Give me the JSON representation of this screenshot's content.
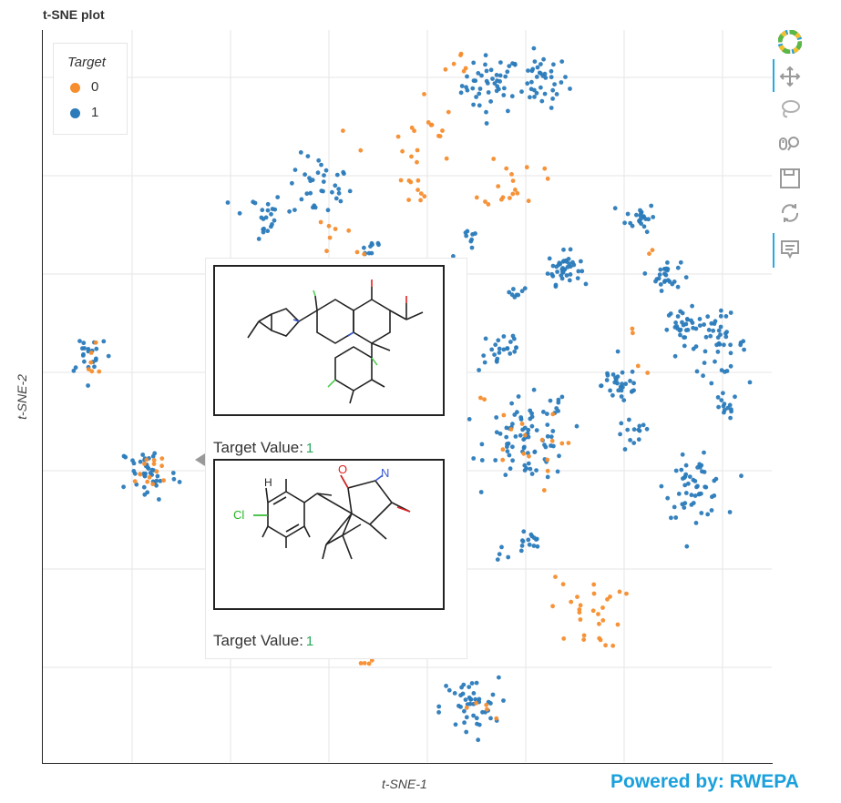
{
  "title": "t-SNE plot",
  "legend": {
    "title": "Target",
    "items": [
      {
        "label": "0",
        "color": "#f68d2e"
      },
      {
        "label": "1",
        "color": "#2b7bba"
      }
    ]
  },
  "xlabel": "t-SNE-1",
  "ylabel": "t-SNE-2",
  "powered_by": "Powered by: RWEPA",
  "toolbar": [
    "bokeh-logo-icon",
    "pan-icon",
    "lasso-icon",
    "wheel-zoom-icon",
    "save-icon",
    "reset-icon",
    "hover-icon"
  ],
  "tooltip": {
    "entries": [
      {
        "label": "Target Value:",
        "value": "1"
      },
      {
        "label": "Target Value:",
        "value": "1"
      }
    ],
    "mol2_atoms": {
      "h": "H",
      "cl": "Cl",
      "o": "O",
      "n": "N"
    }
  },
  "chart_data": {
    "type": "scatter",
    "title": "t-SNE plot",
    "xlabel": "t-SNE-1",
    "ylabel": "t-SNE-2",
    "xlim": [
      0,
      100
    ],
    "ylim": [
      0,
      100
    ],
    "grid": true,
    "legend_position": "top-left",
    "series": [
      {
        "name": "0",
        "color": "#f68d2e",
        "clusters": [
          {
            "x": 57.5,
            "y": 94.5,
            "spread": 1.2,
            "n": 6
          },
          {
            "x": 50.5,
            "y": 85.5,
            "spread": 3.2,
            "n": 18
          },
          {
            "x": 64.5,
            "y": 79.5,
            "spread": 2.0,
            "n": 18
          },
          {
            "x": 51.5,
            "y": 78.5,
            "spread": 0.9,
            "n": 9
          },
          {
            "x": 39.5,
            "y": 70.5,
            "spread": 2.5,
            "n": 12
          },
          {
            "x": 83.0,
            "y": 70.0,
            "spread": 0.5,
            "n": 2
          },
          {
            "x": 14.5,
            "y": 39.5,
            "spread": 1.8,
            "n": 14
          },
          {
            "x": 6.5,
            "y": 54.5,
            "spread": 1.2,
            "n": 6
          },
          {
            "x": 65.5,
            "y": 42.5,
            "spread": 2.8,
            "n": 16
          },
          {
            "x": 74.5,
            "y": 20.5,
            "spread": 2.5,
            "n": 28
          },
          {
            "x": 44.5,
            "y": 13.5,
            "spread": 0.7,
            "n": 5
          },
          {
            "x": 60.5,
            "y": 7.5,
            "spread": 1.2,
            "n": 5
          },
          {
            "x": 58.5,
            "y": 49.5,
            "spread": 1.2,
            "n": 4
          },
          {
            "x": 80.5,
            "y": 58.5,
            "spread": 0.5,
            "n": 2
          },
          {
            "x": 82.0,
            "y": 53.5,
            "spread": 0.5,
            "n": 2
          }
        ]
      },
      {
        "name": "1",
        "color": "#2b7bba",
        "clusters": [
          {
            "x": 61.5,
            "y": 92.5,
            "spread": 2.0,
            "n": 45
          },
          {
            "x": 68.5,
            "y": 93.0,
            "spread": 1.8,
            "n": 38
          },
          {
            "x": 38.0,
            "y": 78.5,
            "spread": 2.2,
            "n": 35
          },
          {
            "x": 29.5,
            "y": 74.5,
            "spread": 1.8,
            "n": 22
          },
          {
            "x": 45.0,
            "y": 70.5,
            "spread": 0.9,
            "n": 10
          },
          {
            "x": 59.0,
            "y": 71.5,
            "spread": 1.0,
            "n": 8
          },
          {
            "x": 82.0,
            "y": 74.5,
            "spread": 1.0,
            "n": 22
          },
          {
            "x": 71.5,
            "y": 67.5,
            "spread": 1.1,
            "n": 40
          },
          {
            "x": 85.5,
            "y": 66.5,
            "spread": 1.0,
            "n": 26
          },
          {
            "x": 65.0,
            "y": 64.5,
            "spread": 0.7,
            "n": 8
          },
          {
            "x": 88.0,
            "y": 59.5,
            "spread": 1.2,
            "n": 30
          },
          {
            "x": 92.5,
            "y": 57.0,
            "spread": 2.0,
            "n": 45
          },
          {
            "x": 63.0,
            "y": 56.5,
            "spread": 1.6,
            "n": 24
          },
          {
            "x": 79.5,
            "y": 51.5,
            "spread": 1.4,
            "n": 26
          },
          {
            "x": 93.5,
            "y": 48.5,
            "spread": 0.9,
            "n": 14
          },
          {
            "x": 81.0,
            "y": 44.5,
            "spread": 1.2,
            "n": 14
          },
          {
            "x": 66.5,
            "y": 44.0,
            "spread": 2.8,
            "n": 80
          },
          {
            "x": 89.5,
            "y": 37.5,
            "spread": 2.0,
            "n": 52
          },
          {
            "x": 66.5,
            "y": 30.0,
            "spread": 1.0,
            "n": 14
          },
          {
            "x": 63.0,
            "y": 28.5,
            "spread": 0.5,
            "n": 4
          },
          {
            "x": 58.5,
            "y": 7.5,
            "spread": 2.0,
            "n": 45
          },
          {
            "x": 14.5,
            "y": 39.5,
            "spread": 2.0,
            "n": 40
          },
          {
            "x": 6.5,
            "y": 56.0,
            "spread": 1.6,
            "n": 22
          },
          {
            "x": 70.5,
            "y": 49.5,
            "spread": 0.5,
            "n": 3
          },
          {
            "x": 78.0,
            "y": 53.0,
            "spread": 0.5,
            "n": 3
          },
          {
            "x": 56.5,
            "y": 68.5,
            "spread": 0.5,
            "n": 3
          }
        ]
      }
    ]
  }
}
